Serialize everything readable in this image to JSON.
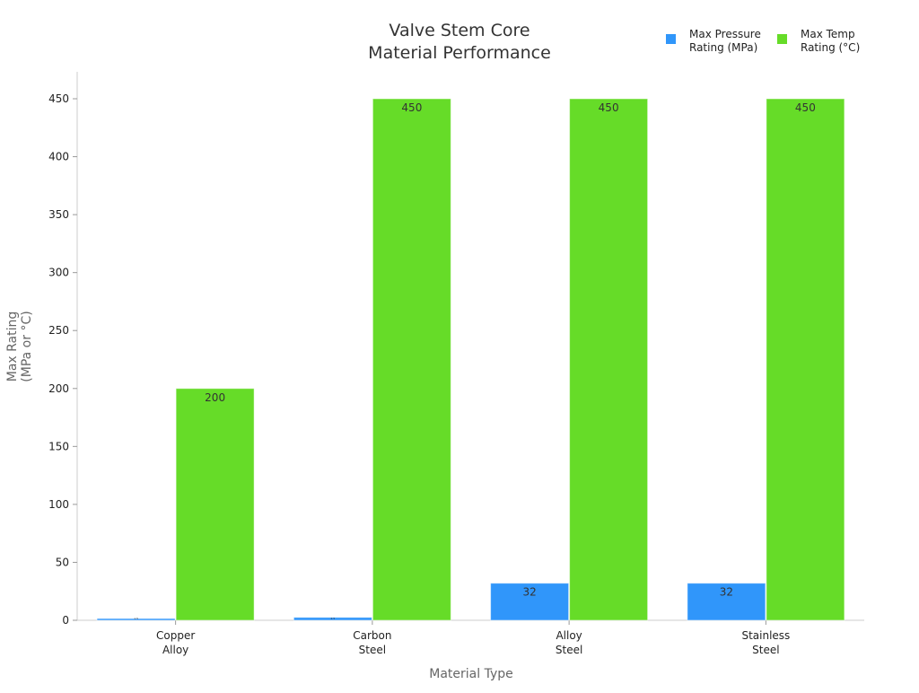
{
  "chart_data": {
    "type": "bar",
    "title": [
      "Valve Stem Core",
      "Material Performance"
    ],
    "xlabel": "Material Type",
    "ylabel": [
      "Max Rating",
      "(MPa or °C)"
    ],
    "categories": [
      [
        "Copper",
        "Alloy"
      ],
      [
        "Carbon",
        "Steel"
      ],
      [
        "Alloy",
        "Steel"
      ],
      [
        "Stainless",
        "Steel"
      ]
    ],
    "series": [
      {
        "name": [
          "Max Pressure",
          "Rating (MPa)"
        ],
        "color": "#3096fa",
        "values": [
          1.5,
          2.5,
          32,
          32
        ]
      },
      {
        "name": [
          "Max Temp",
          "Rating (°C)"
        ],
        "color": "#66dc28",
        "values": [
          200,
          450,
          450,
          450
        ]
      }
    ],
    "ylim": [
      0,
      450
    ],
    "yticks": [
      0,
      50,
      100,
      150,
      200,
      250,
      300,
      350,
      400,
      450
    ],
    "grid": false,
    "legend": "top-right"
  }
}
